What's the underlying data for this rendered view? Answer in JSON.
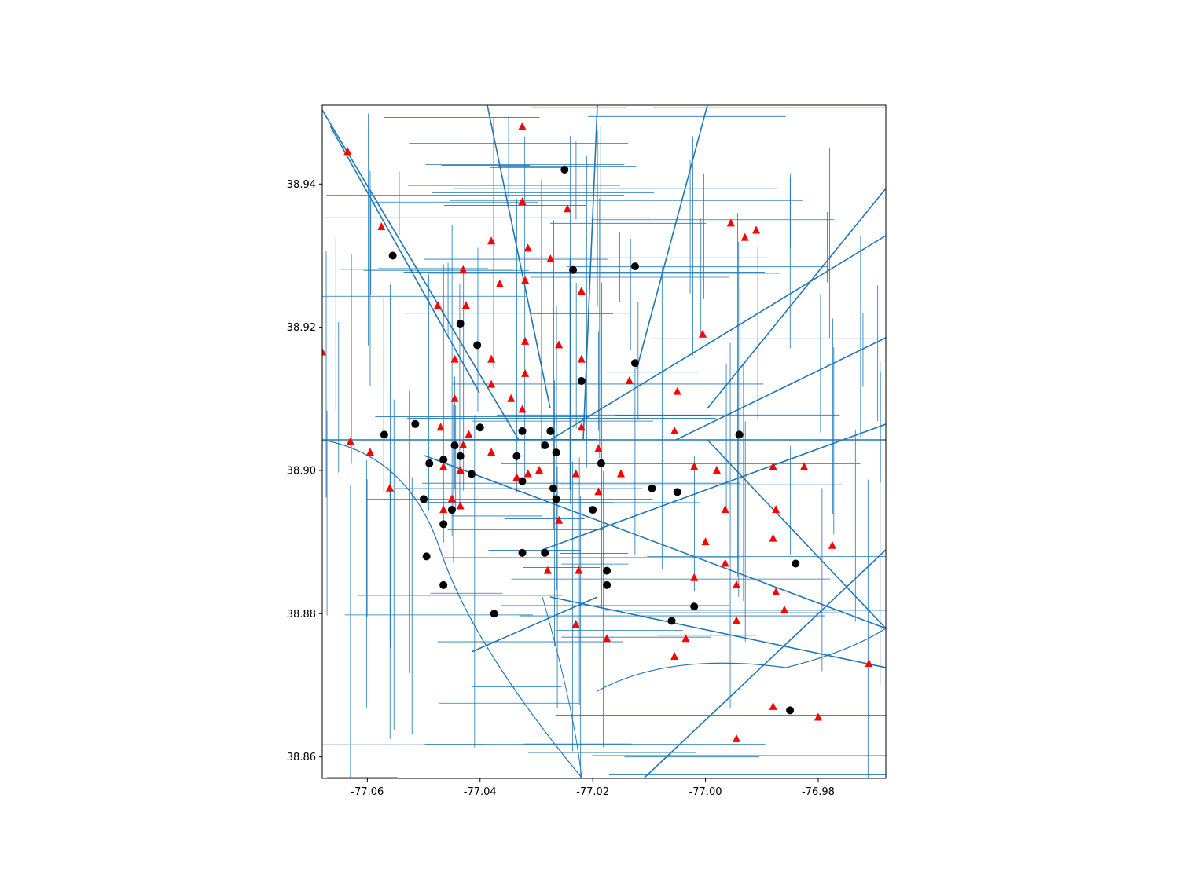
{
  "chart_data": {
    "type": "scatter",
    "background": "street map (road network lines)",
    "xlim": [
      -77.068,
      -76.968
    ],
    "ylim": [
      38.857,
      38.951
    ],
    "x_ticks": [
      "-77.06",
      "-77.04",
      "-77.02",
      "-77.00",
      "-76.98"
    ],
    "x_tick_values": [
      -77.06,
      -77.04,
      -77.02,
      -77.0,
      -76.98
    ],
    "y_ticks": [
      "38.86",
      "38.88",
      "38.90",
      "38.92",
      "38.94"
    ],
    "y_tick_values": [
      38.86,
      38.88,
      38.9,
      38.92,
      38.94
    ],
    "colors": {
      "roads": "#1f77b4",
      "triangles": "#ff0000",
      "circles": "#000000",
      "frame": "#000000"
    },
    "series": [
      {
        "marker": "triangle",
        "color": "#ff0000",
        "points": [
          [
            -77.0635,
            38.9445
          ],
          [
            -77.0575,
            38.934
          ],
          [
            -77.068,
            38.9165
          ],
          [
            -77.063,
            38.904
          ],
          [
            -77.0595,
            38.9025
          ],
          [
            -77.056,
            38.8975
          ],
          [
            -77.0475,
            38.923
          ],
          [
            -77.043,
            38.928
          ],
          [
            -77.0425,
            38.923
          ],
          [
            -77.0445,
            38.9155
          ],
          [
            -77.038,
            38.932
          ],
          [
            -77.0365,
            38.926
          ],
          [
            -77.0325,
            38.948
          ],
          [
            -77.0325,
            38.9375
          ],
          [
            -77.0315,
            38.931
          ],
          [
            -77.032,
            38.9265
          ],
          [
            -77.0275,
            38.9295
          ],
          [
            -77.0245,
            38.9365
          ],
          [
            -77.022,
            38.925
          ],
          [
            -77.038,
            38.9155
          ],
          [
            -77.032,
            38.918
          ],
          [
            -77.026,
            38.9175
          ],
          [
            -77.022,
            38.9155
          ],
          [
            -77.038,
            38.912
          ],
          [
            -77.032,
            38.9135
          ],
          [
            -77.0345,
            38.91
          ],
          [
            -77.0325,
            38.9085
          ],
          [
            -77.0445,
            38.91
          ],
          [
            -77.047,
            38.906
          ],
          [
            -77.042,
            38.905
          ],
          [
            -77.043,
            38.9035
          ],
          [
            -77.038,
            38.9025
          ],
          [
            -77.0465,
            38.9005
          ],
          [
            -77.0435,
            38.9
          ],
          [
            -77.0335,
            38.899
          ],
          [
            -77.0315,
            38.8995
          ],
          [
            -77.0295,
            38.9
          ],
          [
            -77.045,
            38.896
          ],
          [
            -77.0465,
            38.8945
          ],
          [
            -77.0435,
            38.895
          ],
          [
            -77.026,
            38.893
          ],
          [
            -77.028,
            38.886
          ],
          [
            -77.022,
            38.906
          ],
          [
            -77.023,
            38.8995
          ],
          [
            -77.019,
            38.903
          ],
          [
            -77.019,
            38.897
          ],
          [
            -77.015,
            38.8995
          ],
          [
            -77.0135,
            38.9125
          ],
          [
            -77.005,
            38.911
          ],
          [
            -77.0055,
            38.9055
          ],
          [
            -77.0005,
            38.919
          ],
          [
            -77.002,
            38.9005
          ],
          [
            -76.998,
            38.9
          ],
          [
            -76.9965,
            38.8945
          ],
          [
            -77.0,
            38.89
          ],
          [
            -76.9965,
            38.887
          ],
          [
            -77.002,
            38.885
          ],
          [
            -76.9945,
            38.884
          ],
          [
            -76.988,
            38.9005
          ],
          [
            -76.9875,
            38.8945
          ],
          [
            -76.988,
            38.8905
          ],
          [
            -76.9875,
            38.883
          ],
          [
            -76.986,
            38.8805
          ],
          [
            -76.9825,
            38.9005
          ],
          [
            -76.9775,
            38.8895
          ],
          [
            -76.9955,
            38.9345
          ],
          [
            -76.993,
            38.9325
          ],
          [
            -76.991,
            38.9335
          ],
          [
            -77.0225,
            38.886
          ],
          [
            -77.023,
            38.8785
          ],
          [
            -77.0175,
            38.8765
          ],
          [
            -77.0055,
            38.874
          ],
          [
            -77.0035,
            38.8765
          ],
          [
            -76.9945,
            38.879
          ],
          [
            -76.988,
            38.867
          ],
          [
            -76.98,
            38.8655
          ],
          [
            -76.9945,
            38.8625
          ],
          [
            -76.971,
            38.873
          ]
        ]
      },
      {
        "marker": "circle",
        "color": "#000000",
        "points": [
          [
            -77.025,
            38.942
          ],
          [
            -77.0555,
            38.93
          ],
          [
            -77.0235,
            38.928
          ],
          [
            -77.0125,
            38.9285
          ],
          [
            -77.0435,
            38.9205
          ],
          [
            -77.0405,
            38.9175
          ],
          [
            -77.0125,
            38.915
          ],
          [
            -77.022,
            38.9125
          ],
          [
            -77.0515,
            38.9065
          ],
          [
            -77.057,
            38.905
          ],
          [
            -77.04,
            38.906
          ],
          [
            -77.0325,
            38.9055
          ],
          [
            -77.0275,
            38.9055
          ],
          [
            -77.0445,
            38.9035
          ],
          [
            -77.0285,
            38.9035
          ],
          [
            -77.0435,
            38.902
          ],
          [
            -77.0335,
            38.902
          ],
          [
            -77.0265,
            38.9025
          ],
          [
            -77.0465,
            38.9015
          ],
          [
            -77.049,
            38.901
          ],
          [
            -77.0415,
            38.8995
          ],
          [
            -77.0325,
            38.8985
          ],
          [
            -77.027,
            38.8975
          ],
          [
            -77.0185,
            38.901
          ],
          [
            -77.0095,
            38.8975
          ],
          [
            -77.005,
            38.897
          ],
          [
            -77.05,
            38.896
          ],
          [
            -77.0265,
            38.896
          ],
          [
            -77.045,
            38.8945
          ],
          [
            -77.02,
            38.8945
          ],
          [
            -77.0465,
            38.8925
          ],
          [
            -77.0325,
            38.8885
          ],
          [
            -77.0285,
            38.8885
          ],
          [
            -77.0495,
            38.888
          ],
          [
            -77.0175,
            38.886
          ],
          [
            -77.0465,
            38.884
          ],
          [
            -77.0175,
            38.884
          ],
          [
            -77.0375,
            38.88
          ],
          [
            -77.002,
            38.881
          ],
          [
            -77.006,
            38.879
          ],
          [
            -76.984,
            38.887
          ],
          [
            -76.994,
            38.905
          ],
          [
            -76.985,
            38.8665
          ]
        ]
      }
    ]
  }
}
